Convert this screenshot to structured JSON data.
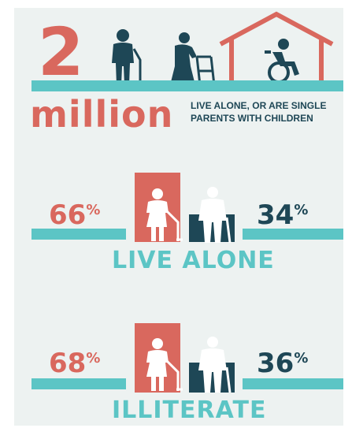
{
  "headline": {
    "number": "2",
    "unit": "million",
    "description": "LIVE ALONE, OR ARE SINGLE PARENTS WITH CHILDREN"
  },
  "rows": [
    {
      "label": "LIVE ALONE",
      "left_value": "66",
      "left_unit": "%",
      "right_value": "34",
      "right_unit": "%"
    },
    {
      "label": "ILLITERATE",
      "left_value": "68",
      "left_unit": "%",
      "right_value": "36",
      "right_unit": "%"
    }
  ],
  "icons": [
    "elderly-man-cane-icon",
    "elderly-woman-walker-icon",
    "house-wheelchair-icon",
    "elderly-woman-icon",
    "elderly-man-icon"
  ],
  "colors": {
    "coral": "#d9685e",
    "teal": "#5cc5c5",
    "navy": "#1e4756",
    "background": "#edf2f1"
  }
}
